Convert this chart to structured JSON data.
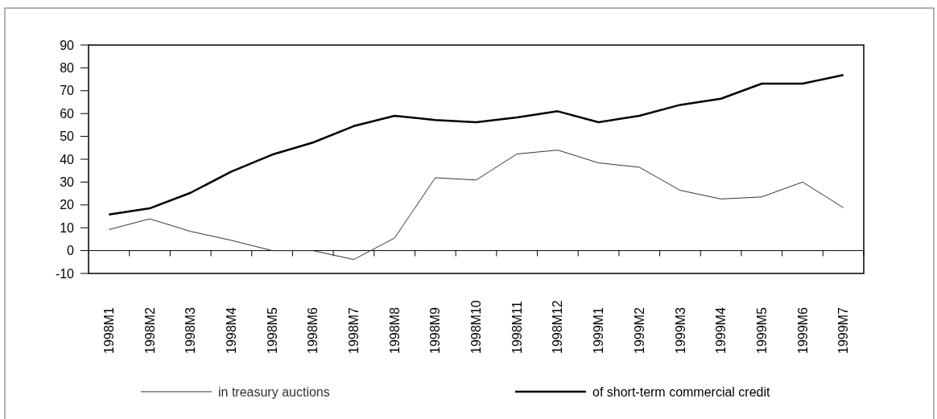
{
  "chart_data": {
    "type": "line",
    "categories": [
      "1998M1",
      "1998M2",
      "1998M3",
      "1998M4",
      "1998M5",
      "1998M6",
      "1998M7",
      "1998M8",
      "1998M9",
      "1998M10",
      "1998M11",
      "1998M12",
      "1999M1",
      "1999M2",
      "1999M3",
      "1999M4",
      "1999M5",
      "1999M6",
      "1999M7"
    ],
    "series": [
      {
        "name": "in treasury auctions",
        "color": "#333333",
        "values": [
          9.2,
          13.9,
          8.4,
          4.5,
          0,
          0,
          -3.9,
          5.5,
          31.9,
          30.9,
          42.3,
          44,
          38.4,
          36.5,
          26.4,
          22.6,
          23.5,
          30,
          18.8
        ]
      },
      {
        "name": "of short-term commercial credit",
        "color": "#000000",
        "values": [
          15.8,
          18.5,
          25.3,
          34.6,
          42,
          47.3,
          54.5,
          59,
          57.2,
          56.2,
          58.3,
          61,
          56.2,
          59,
          63.8,
          66.5,
          73.1,
          73.1,
          76.9
        ]
      }
    ],
    "ylim": [
      -10,
      90
    ],
    "yticks": [
      -10,
      0,
      10,
      20,
      30,
      40,
      50,
      60,
      70,
      80,
      90
    ],
    "legend": "bottom",
    "marker": "none",
    "line_style": "solid"
  }
}
